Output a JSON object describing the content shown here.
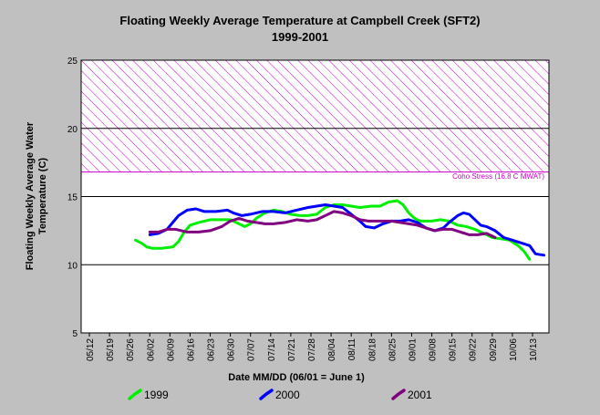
{
  "chart_data": {
    "type": "line",
    "title": "Floating Weekly Average Temperature at Campbell Creek (SFT2)",
    "subtitle": "1999-2001",
    "xlabel": "Date MM/DD (06/01 = June 1)",
    "ylabel_line1": "Floating Weekly Average Water",
    "ylabel_line2": "Temperature (C)",
    "ylim": [
      5,
      25
    ],
    "yticks": [
      "5",
      "10",
      "15",
      "20",
      "25"
    ],
    "xlim": [
      -20,
      134
    ],
    "xticks": [
      {
        "label": "05/12",
        "day": -20
      },
      {
        "label": "05/19",
        "day": -13
      },
      {
        "label": "05/26",
        "day": -6
      },
      {
        "label": "06/02",
        "day": 1
      },
      {
        "label": "06/09",
        "day": 8
      },
      {
        "label": "06/16",
        "day": 15
      },
      {
        "label": "06/23",
        "day": 22
      },
      {
        "label": "06/30",
        "day": 29
      },
      {
        "label": "07/07",
        "day": 36
      },
      {
        "label": "07/14",
        "day": 43
      },
      {
        "label": "07/21",
        "day": 50
      },
      {
        "label": "07/28",
        "day": 57
      },
      {
        "label": "08/04",
        "day": 64
      },
      {
        "label": "08/11",
        "day": 71
      },
      {
        "label": "08/18",
        "day": 78
      },
      {
        "label": "08/25",
        "day": 85
      },
      {
        "label": "09/01",
        "day": 92
      },
      {
        "label": "09/08",
        "day": 99
      },
      {
        "label": "09/15",
        "day": 106
      },
      {
        "label": "09/22",
        "day": 113
      },
      {
        "label": "09/29",
        "day": 120
      },
      {
        "label": "10/06",
        "day": 127
      },
      {
        "label": "10/13",
        "day": 134
      }
    ],
    "grid_y": [
      10,
      15,
      20
    ],
    "stress_band": {
      "from": 16.8,
      "to": 25,
      "label": "Coho Stress (16.8 C MWAT)",
      "color": "#cc00cc"
    },
    "series": [
      {
        "name": "1999",
        "color": "#00ee00",
        "points": [
          [
            -4,
            11.8
          ],
          [
            -2,
            11.6
          ],
          [
            0,
            11.3
          ],
          [
            2,
            11.2
          ],
          [
            5,
            11.2
          ],
          [
            9,
            11.3
          ],
          [
            11,
            11.7
          ],
          [
            13,
            12.4
          ],
          [
            15,
            12.9
          ],
          [
            18,
            13.1
          ],
          [
            22,
            13.3
          ],
          [
            26,
            13.3
          ],
          [
            29,
            13.3
          ],
          [
            32,
            13.0
          ],
          [
            34,
            12.8
          ],
          [
            36,
            13.0
          ],
          [
            38,
            13.4
          ],
          [
            41,
            13.8
          ],
          [
            44,
            14.0
          ],
          [
            47,
            13.9
          ],
          [
            50,
            13.7
          ],
          [
            53,
            13.6
          ],
          [
            56,
            13.6
          ],
          [
            59,
            13.7
          ],
          [
            62,
            14.2
          ],
          [
            65,
            14.4
          ],
          [
            68,
            14.4
          ],
          [
            71,
            14.3
          ],
          [
            74,
            14.2
          ],
          [
            78,
            14.3
          ],
          [
            81,
            14.3
          ],
          [
            84,
            14.6
          ],
          [
            87,
            14.7
          ],
          [
            89,
            14.4
          ],
          [
            91,
            13.8
          ],
          [
            93,
            13.4
          ],
          [
            95,
            13.2
          ],
          [
            99,
            13.2
          ],
          [
            102,
            13.3
          ],
          [
            105,
            13.2
          ],
          [
            108,
            12.9
          ],
          [
            111,
            12.8
          ],
          [
            114,
            12.6
          ],
          [
            117,
            12.3
          ],
          [
            120,
            12.0
          ],
          [
            123,
            11.9
          ],
          [
            126,
            11.8
          ],
          [
            129,
            11.4
          ],
          [
            131,
            11.0
          ],
          [
            133,
            10.4
          ]
        ]
      },
      {
        "name": "2000",
        "color": "#0000ff",
        "points": [
          [
            1,
            12.2
          ],
          [
            4,
            12.3
          ],
          [
            7,
            12.6
          ],
          [
            9,
            13.1
          ],
          [
            11,
            13.6
          ],
          [
            14,
            14.0
          ],
          [
            17,
            14.1
          ],
          [
            20,
            13.9
          ],
          [
            24,
            13.9
          ],
          [
            28,
            14.0
          ],
          [
            30,
            13.8
          ],
          [
            33,
            13.6
          ],
          [
            36,
            13.7
          ],
          [
            40,
            13.9
          ],
          [
            44,
            13.9
          ],
          [
            48,
            13.8
          ],
          [
            52,
            14.0
          ],
          [
            56,
            14.2
          ],
          [
            59,
            14.3
          ],
          [
            62,
            14.4
          ],
          [
            65,
            14.3
          ],
          [
            68,
            14.2
          ],
          [
            71,
            13.7
          ],
          [
            74,
            13.2
          ],
          [
            76,
            12.8
          ],
          [
            79,
            12.7
          ],
          [
            82,
            13.0
          ],
          [
            85,
            13.2
          ],
          [
            88,
            13.2
          ],
          [
            91,
            13.3
          ],
          [
            94,
            13.1
          ],
          [
            97,
            12.7
          ],
          [
            100,
            12.5
          ],
          [
            103,
            12.7
          ],
          [
            105,
            13.1
          ],
          [
            108,
            13.6
          ],
          [
            110,
            13.8
          ],
          [
            112,
            13.7
          ],
          [
            114,
            13.3
          ],
          [
            116,
            12.9
          ],
          [
            118,
            12.8
          ],
          [
            121,
            12.5
          ],
          [
            124,
            12.0
          ],
          [
            127,
            11.8
          ],
          [
            130,
            11.6
          ],
          [
            133,
            11.4
          ],
          [
            135,
            10.8
          ],
          [
            138,
            10.7
          ]
        ]
      },
      {
        "name": "2001",
        "color": "#800080",
        "points": [
          [
            1,
            12.4
          ],
          [
            4,
            12.4
          ],
          [
            7,
            12.6
          ],
          [
            10,
            12.6
          ],
          [
            14,
            12.4
          ],
          [
            18,
            12.4
          ],
          [
            22,
            12.5
          ],
          [
            26,
            12.8
          ],
          [
            29,
            13.2
          ],
          [
            32,
            13.4
          ],
          [
            35,
            13.2
          ],
          [
            38,
            13.1
          ],
          [
            41,
            13.0
          ],
          [
            44,
            13.0
          ],
          [
            48,
            13.1
          ],
          [
            52,
            13.3
          ],
          [
            56,
            13.2
          ],
          [
            59,
            13.3
          ],
          [
            62,
            13.6
          ],
          [
            65,
            13.9
          ],
          [
            68,
            13.8
          ],
          [
            71,
            13.6
          ],
          [
            74,
            13.3
          ],
          [
            77,
            13.2
          ],
          [
            81,
            13.2
          ],
          [
            85,
            13.2
          ],
          [
            88,
            13.1
          ],
          [
            91,
            13.0
          ],
          [
            94,
            12.9
          ],
          [
            97,
            12.7
          ],
          [
            100,
            12.5
          ],
          [
            103,
            12.6
          ],
          [
            106,
            12.6
          ],
          [
            109,
            12.4
          ],
          [
            112,
            12.2
          ],
          [
            115,
            12.2
          ],
          [
            118,
            12.3
          ],
          [
            121,
            12.0
          ]
        ]
      }
    ]
  }
}
